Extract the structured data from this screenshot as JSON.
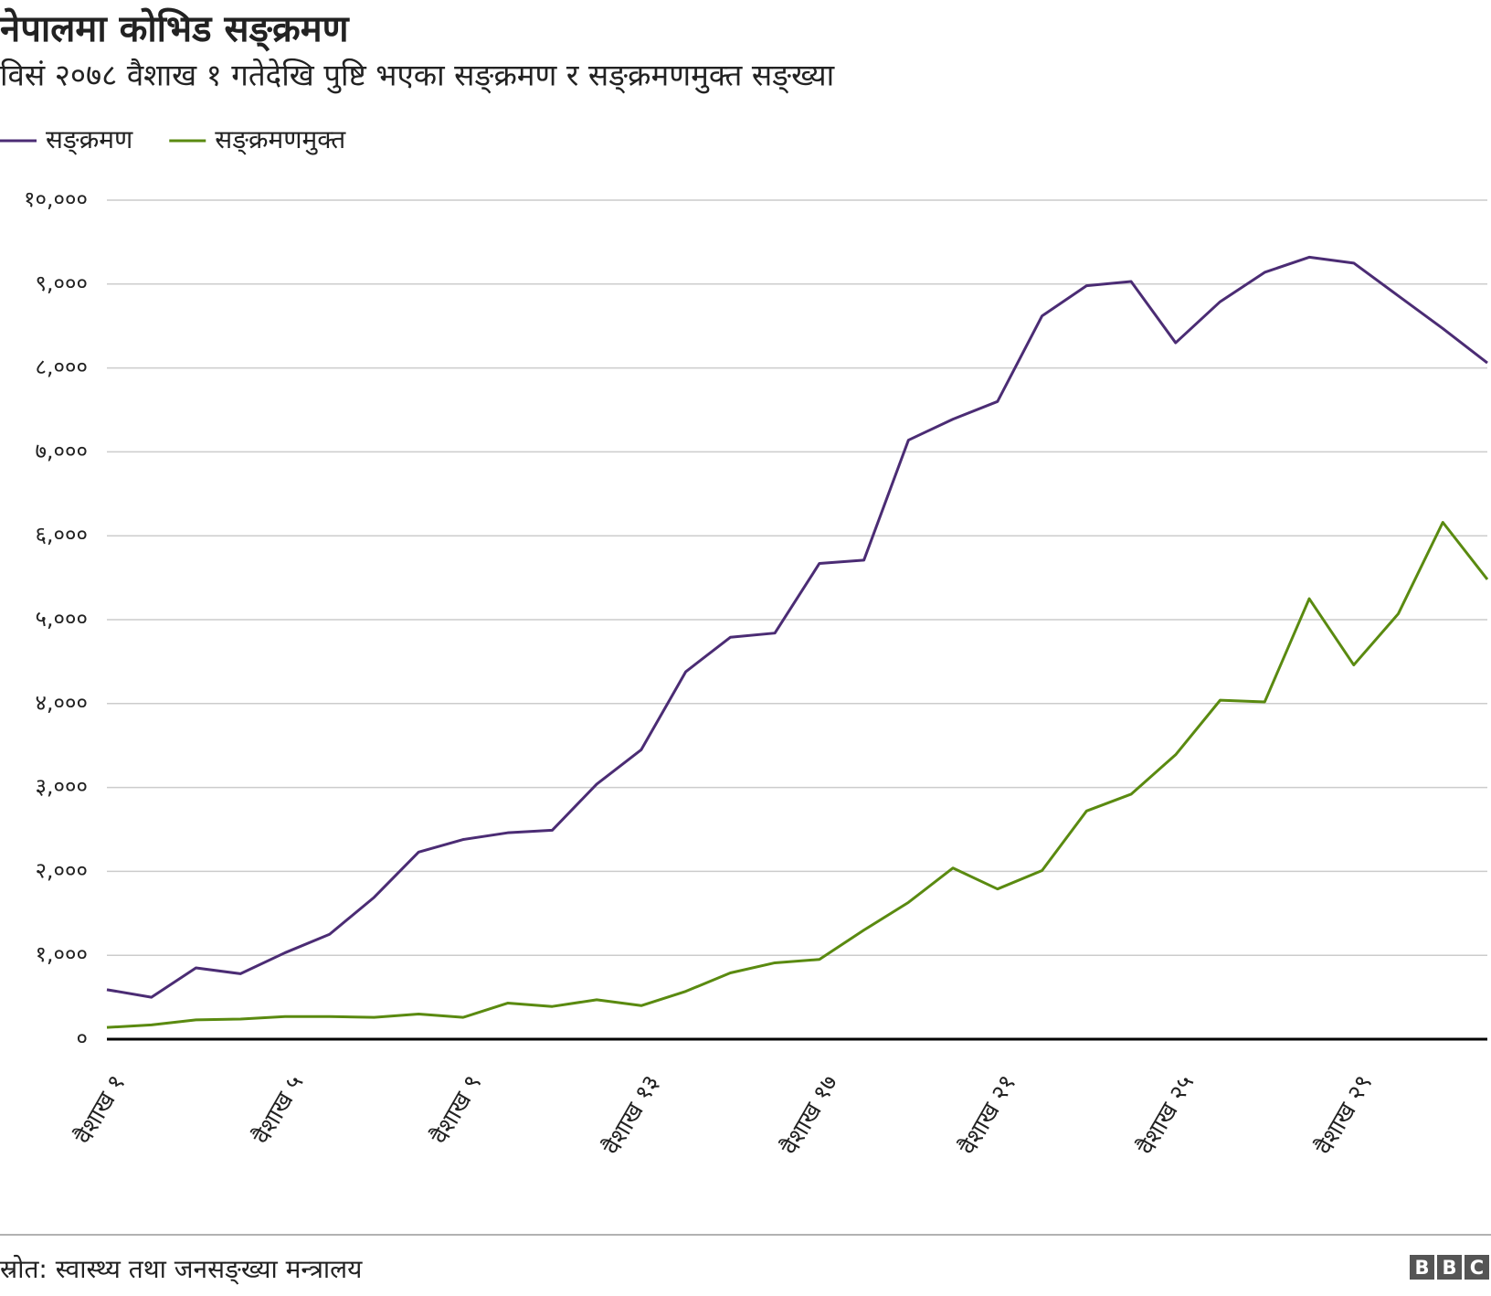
{
  "chart_data": {
    "type": "line",
    "title": "नेपालमा कोभिड सङ्क्रमण",
    "subtitle": "विसं २०७८ वैशाख १ गतेदेखि पुष्टि भएका सङ्क्रमण र सङ्क्रमणमुक्त सङ्ख्या",
    "source": "स्रोत: स्वास्थ्य तथा जनसङ्ख्या मन्त्रालय",
    "brand": [
      "B",
      "B",
      "C"
    ],
    "categories": [
      "वैशाख १",
      null,
      null,
      null,
      "वैशाख ५",
      null,
      null,
      null,
      "वैशाख ९",
      null,
      null,
      null,
      "वैशाख १३",
      null,
      null,
      null,
      "वैशाख १७",
      null,
      null,
      null,
      "वैशाख २१",
      null,
      null,
      null,
      "वैशाख २५",
      null,
      null,
      null,
      "वैशाख २९",
      null,
      null,
      null
    ],
    "series": [
      {
        "name": "सङ्क्रमण",
        "color": "#4b2c74",
        "values": [
          590,
          500,
          850,
          780,
          1030,
          1250,
          1690,
          2230,
          2380,
          2460,
          2490,
          3040,
          3450,
          4380,
          4790,
          4840,
          5670,
          5710,
          7140,
          7390,
          7600,
          8620,
          8980,
          9030,
          8300,
          8790,
          9140,
          9320,
          9250,
          8860,
          8470,
          8060
        ]
      },
      {
        "name": "सङ्क्रमणमुक्त",
        "color": "#5a8a10",
        "values": [
          140,
          170,
          230,
          240,
          270,
          270,
          260,
          300,
          260,
          430,
          390,
          470,
          400,
          570,
          790,
          910,
          950,
          1300,
          1630,
          2040,
          1790,
          2010,
          2720,
          2920,
          3390,
          4040,
          4020,
          5250,
          4460,
          5070,
          6160,
          5480
        ]
      }
    ],
    "ylim": [
      0,
      10000
    ],
    "yticks": [
      {
        "value": 0,
        "label": "०"
      },
      {
        "value": 1000,
        "label": "१,०००"
      },
      {
        "value": 2000,
        "label": "२,०००"
      },
      {
        "value": 3000,
        "label": "३,०००"
      },
      {
        "value": 4000,
        "label": "४,०००"
      },
      {
        "value": 5000,
        "label": "५,०००"
      },
      {
        "value": 6000,
        "label": "६,०००"
      },
      {
        "value": 7000,
        "label": "७,०००"
      },
      {
        "value": 8000,
        "label": "८,०००"
      },
      {
        "value": 9000,
        "label": "९,०००"
      },
      {
        "value": 10000,
        "label": "१०,०००"
      }
    ],
    "grid": true
  }
}
